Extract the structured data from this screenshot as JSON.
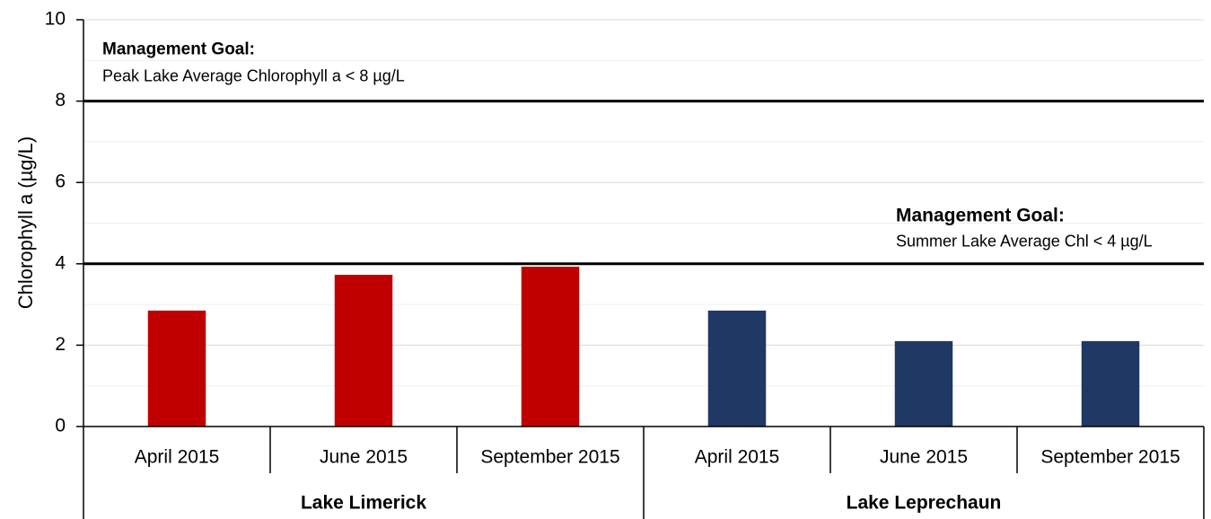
{
  "chart_data": {
    "type": "bar",
    "title": "",
    "ylabel": "Chlorophyll a (µg/L)",
    "ylim": [
      0,
      10
    ],
    "yticks": [
      "0",
      "2",
      "4",
      "6",
      "8",
      "10"
    ],
    "grid": true,
    "categories": [
      "April 2015",
      "June 2015",
      "September 2015",
      "April 2015",
      "June 2015",
      "September 2015"
    ],
    "groups": [
      {
        "name": "Lake Limerick",
        "color": "#c00000",
        "categories": [
          "April 2015",
          "June 2015",
          "September 2015"
        ],
        "values": [
          2.85,
          3.73,
          3.93
        ]
      },
      {
        "name": "Lake Leprechaun",
        "color": "#1f3864",
        "categories": [
          "April 2015",
          "June 2015",
          "September 2015"
        ],
        "values": [
          2.85,
          2.1,
          2.1
        ]
      }
    ],
    "reference_lines": [
      {
        "value": 8,
        "title": "Management Goal:",
        "text": "Peak Lake Average Chlorophyll a < 8 µg/L",
        "align": "left"
      },
      {
        "value": 4,
        "title": "Management Goal:",
        "text": "Summer Lake Average Chl < 4 µg/L",
        "align": "right"
      }
    ]
  }
}
